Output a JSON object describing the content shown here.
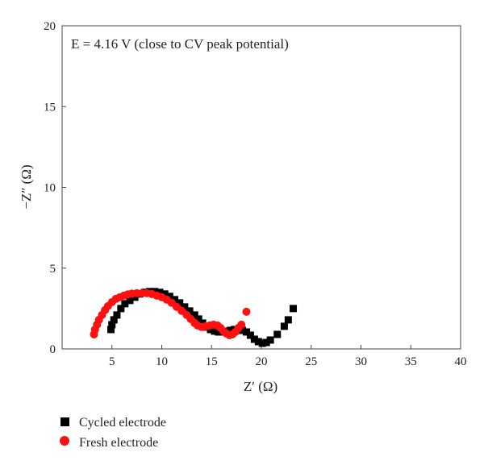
{
  "chart_data": {
    "type": "scatter",
    "annotation": "E = 4.16 V (close to CV peak potential)",
    "xlabel": "Z′ (Ω)",
    "ylabel": "−Z″ (Ω)",
    "xlim": [
      0,
      40
    ],
    "ylim": [
      0,
      20
    ],
    "xticks": [
      5,
      10,
      15,
      20,
      25,
      30,
      35,
      40
    ],
    "yticks": [
      0,
      5,
      10,
      15,
      20
    ],
    "grid": false,
    "legend_position": "bottom-left, below plot",
    "series": [
      {
        "name": "Cycled electrode",
        "marker": "square",
        "color": "#000000",
        "points": [
          [
            4.9,
            1.2
          ],
          [
            5.0,
            1.5
          ],
          [
            5.2,
            1.8
          ],
          [
            5.5,
            2.1
          ],
          [
            5.9,
            2.5
          ],
          [
            6.3,
            2.8
          ],
          [
            6.8,
            3.0
          ],
          [
            7.3,
            3.2
          ],
          [
            7.8,
            3.4
          ],
          [
            8.3,
            3.5
          ],
          [
            8.8,
            3.55
          ],
          [
            9.3,
            3.55
          ],
          [
            9.8,
            3.5
          ],
          [
            10.3,
            3.4
          ],
          [
            10.8,
            3.25
          ],
          [
            11.3,
            3.05
          ],
          [
            11.8,
            2.85
          ],
          [
            12.3,
            2.6
          ],
          [
            12.8,
            2.35
          ],
          [
            13.3,
            2.1
          ],
          [
            13.7,
            1.85
          ],
          [
            14.1,
            1.6
          ],
          [
            14.5,
            1.35
          ],
          [
            14.9,
            1.2
          ],
          [
            15.3,
            1.1
          ],
          [
            15.7,
            1.05
          ],
          [
            16.1,
            1.05
          ],
          [
            16.5,
            1.1
          ],
          [
            16.9,
            1.15
          ],
          [
            17.3,
            1.2
          ],
          [
            17.7,
            1.2
          ],
          [
            18.1,
            1.15
          ],
          [
            18.5,
            1.05
          ],
          [
            18.9,
            0.85
          ],
          [
            19.3,
            0.6
          ],
          [
            19.7,
            0.45
          ],
          [
            20.1,
            0.35
          ],
          [
            20.5,
            0.4
          ],
          [
            20.9,
            0.55
          ],
          [
            21.6,
            0.9
          ],
          [
            22.3,
            1.4
          ],
          [
            22.7,
            1.8
          ],
          [
            23.2,
            2.5
          ]
        ]
      },
      {
        "name": "Fresh electrode",
        "marker": "circle",
        "color": "#ff1010",
        "points": [
          [
            3.2,
            0.9
          ],
          [
            3.3,
            1.2
          ],
          [
            3.5,
            1.5
          ],
          [
            3.7,
            1.8
          ],
          [
            4.0,
            2.1
          ],
          [
            4.3,
            2.4
          ],
          [
            4.6,
            2.65
          ],
          [
            5.0,
            2.9
          ],
          [
            5.4,
            3.1
          ],
          [
            5.8,
            3.2
          ],
          [
            6.2,
            3.3
          ],
          [
            6.6,
            3.38
          ],
          [
            7.0,
            3.42
          ],
          [
            7.5,
            3.45
          ],
          [
            8.0,
            3.45
          ],
          [
            8.5,
            3.45
          ],
          [
            9.0,
            3.4
          ],
          [
            9.5,
            3.3
          ],
          [
            10.0,
            3.2
          ],
          [
            10.5,
            3.05
          ],
          [
            11.0,
            2.85
          ],
          [
            11.5,
            2.6
          ],
          [
            12.0,
            2.35
          ],
          [
            12.5,
            2.1
          ],
          [
            12.9,
            1.85
          ],
          [
            13.3,
            1.6
          ],
          [
            13.6,
            1.45
          ],
          [
            14.0,
            1.35
          ],
          [
            14.4,
            1.4
          ],
          [
            14.8,
            1.45
          ],
          [
            15.2,
            1.5
          ],
          [
            15.6,
            1.45
          ],
          [
            15.9,
            1.3
          ],
          [
            16.2,
            1.1
          ],
          [
            16.5,
            0.95
          ],
          [
            16.8,
            0.85
          ],
          [
            17.1,
            0.9
          ],
          [
            17.4,
            1.05
          ],
          [
            17.7,
            1.3
          ],
          [
            18.0,
            1.5
          ],
          [
            18.5,
            2.3
          ]
        ]
      }
    ]
  }
}
